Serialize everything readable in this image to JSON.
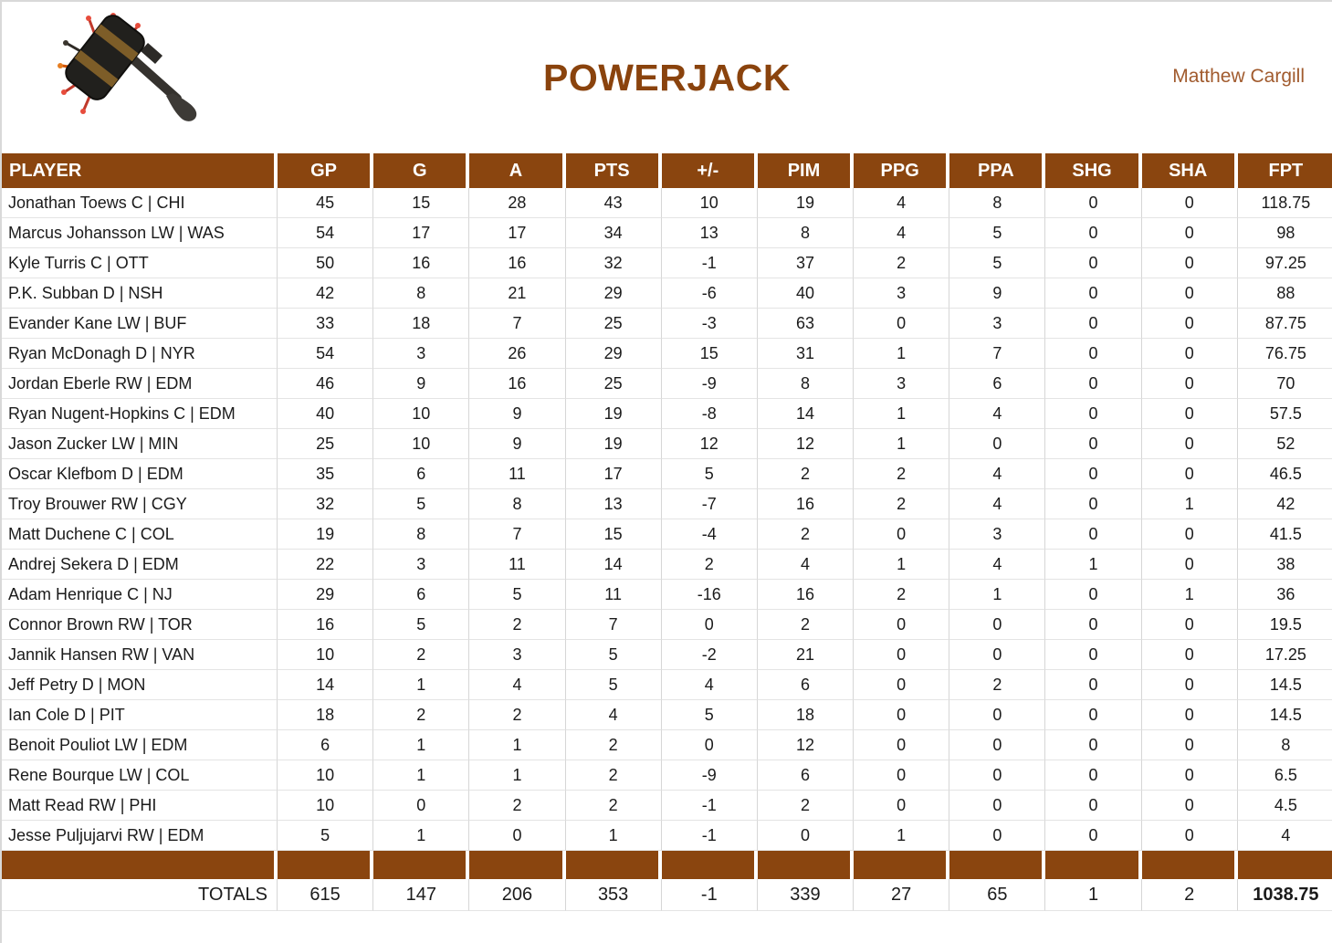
{
  "page": {
    "title": "POWERJACK",
    "owner": "Matthew Cargill",
    "logo_icon": "powerjack-hammer-icon"
  },
  "colors": {
    "header_brown": "#8a450f",
    "title_brown": "#8a430d",
    "owner_brown": "#a15b2e",
    "gridline": "#d6d6d6",
    "header_text": "#ffffff"
  },
  "table": {
    "columns": [
      "PLAYER",
      "GP",
      "G",
      "A",
      "PTS",
      "+/-",
      "PIM",
      "PPG",
      "PPA",
      "SHG",
      "SHA",
      "FPT"
    ],
    "column_keys": [
      "player",
      "gp",
      "g",
      "a",
      "pts",
      "plus-minus",
      "pim",
      "ppg",
      "ppa",
      "shg",
      "sha",
      "fpt"
    ],
    "rows": [
      [
        "Jonathan Toews C | CHI",
        "45",
        "15",
        "28",
        "43",
        "10",
        "19",
        "4",
        "8",
        "0",
        "0",
        "118.75"
      ],
      [
        "Marcus Johansson LW | WAS",
        "54",
        "17",
        "17",
        "34",
        "13",
        "8",
        "4",
        "5",
        "0",
        "0",
        "98"
      ],
      [
        "Kyle Turris C | OTT",
        "50",
        "16",
        "16",
        "32",
        "-1",
        "37",
        "2",
        "5",
        "0",
        "0",
        "97.25"
      ],
      [
        "P.K. Subban D | NSH",
        "42",
        "8",
        "21",
        "29",
        "-6",
        "40",
        "3",
        "9",
        "0",
        "0",
        "88"
      ],
      [
        "Evander Kane LW | BUF",
        "33",
        "18",
        "7",
        "25",
        "-3",
        "63",
        "0",
        "3",
        "0",
        "0",
        "87.75"
      ],
      [
        "Ryan McDonagh D | NYR",
        "54",
        "3",
        "26",
        "29",
        "15",
        "31",
        "1",
        "7",
        "0",
        "0",
        "76.75"
      ],
      [
        "Jordan Eberle RW | EDM",
        "46",
        "9",
        "16",
        "25",
        "-9",
        "8",
        "3",
        "6",
        "0",
        "0",
        "70"
      ],
      [
        "Ryan Nugent-Hopkins C | EDM",
        "40",
        "10",
        "9",
        "19",
        "-8",
        "14",
        "1",
        "4",
        "0",
        "0",
        "57.5"
      ],
      [
        "Jason Zucker LW | MIN",
        "25",
        "10",
        "9",
        "19",
        "12",
        "12",
        "1",
        "0",
        "0",
        "0",
        "52"
      ],
      [
        "Oscar Klefbom D | EDM",
        "35",
        "6",
        "11",
        "17",
        "5",
        "2",
        "2",
        "4",
        "0",
        "0",
        "46.5"
      ],
      [
        "Troy Brouwer RW | CGY",
        "32",
        "5",
        "8",
        "13",
        "-7",
        "16",
        "2",
        "4",
        "0",
        "1",
        "42"
      ],
      [
        "Matt Duchene C | COL",
        "19",
        "8",
        "7",
        "15",
        "-4",
        "2",
        "0",
        "3",
        "0",
        "0",
        "41.5"
      ],
      [
        "Andrej Sekera D | EDM",
        "22",
        "3",
        "11",
        "14",
        "2",
        "4",
        "1",
        "4",
        "1",
        "0",
        "38"
      ],
      [
        "Adam Henrique C | NJ",
        "29",
        "6",
        "5",
        "11",
        "-16",
        "16",
        "2",
        "1",
        "0",
        "1",
        "36"
      ],
      [
        "Connor Brown RW | TOR",
        "16",
        "5",
        "2",
        "7",
        "0",
        "2",
        "0",
        "0",
        "0",
        "0",
        "19.5"
      ],
      [
        "Jannik Hansen RW | VAN",
        "10",
        "2",
        "3",
        "5",
        "-2",
        "21",
        "0",
        "0",
        "0",
        "0",
        "17.25"
      ],
      [
        "Jeff Petry D | MON",
        "14",
        "1",
        "4",
        "5",
        "4",
        "6",
        "0",
        "2",
        "0",
        "0",
        "14.5"
      ],
      [
        "Ian Cole D | PIT",
        "18",
        "2",
        "2",
        "4",
        "5",
        "18",
        "0",
        "0",
        "0",
        "0",
        "14.5"
      ],
      [
        "Benoit Pouliot LW | EDM",
        "6",
        "1",
        "1",
        "2",
        "0",
        "12",
        "0",
        "0",
        "0",
        "0",
        "8"
      ],
      [
        "Rene Bourque LW | COL",
        "10",
        "1",
        "1",
        "2",
        "-9",
        "6",
        "0",
        "0",
        "0",
        "0",
        "6.5"
      ],
      [
        "Matt Read RW | PHI",
        "10",
        "0",
        "2",
        "2",
        "-1",
        "2",
        "0",
        "0",
        "0",
        "0",
        "4.5"
      ],
      [
        "Jesse Puljujarvi RW | EDM",
        "5",
        "1",
        "0",
        "1",
        "-1",
        "0",
        "1",
        "0",
        "0",
        "0",
        "4"
      ]
    ],
    "totals_label": "TOTALS",
    "totals": [
      "615",
      "147",
      "206",
      "353",
      "-1",
      "339",
      "27",
      "65",
      "1",
      "2",
      "1038.75"
    ]
  }
}
